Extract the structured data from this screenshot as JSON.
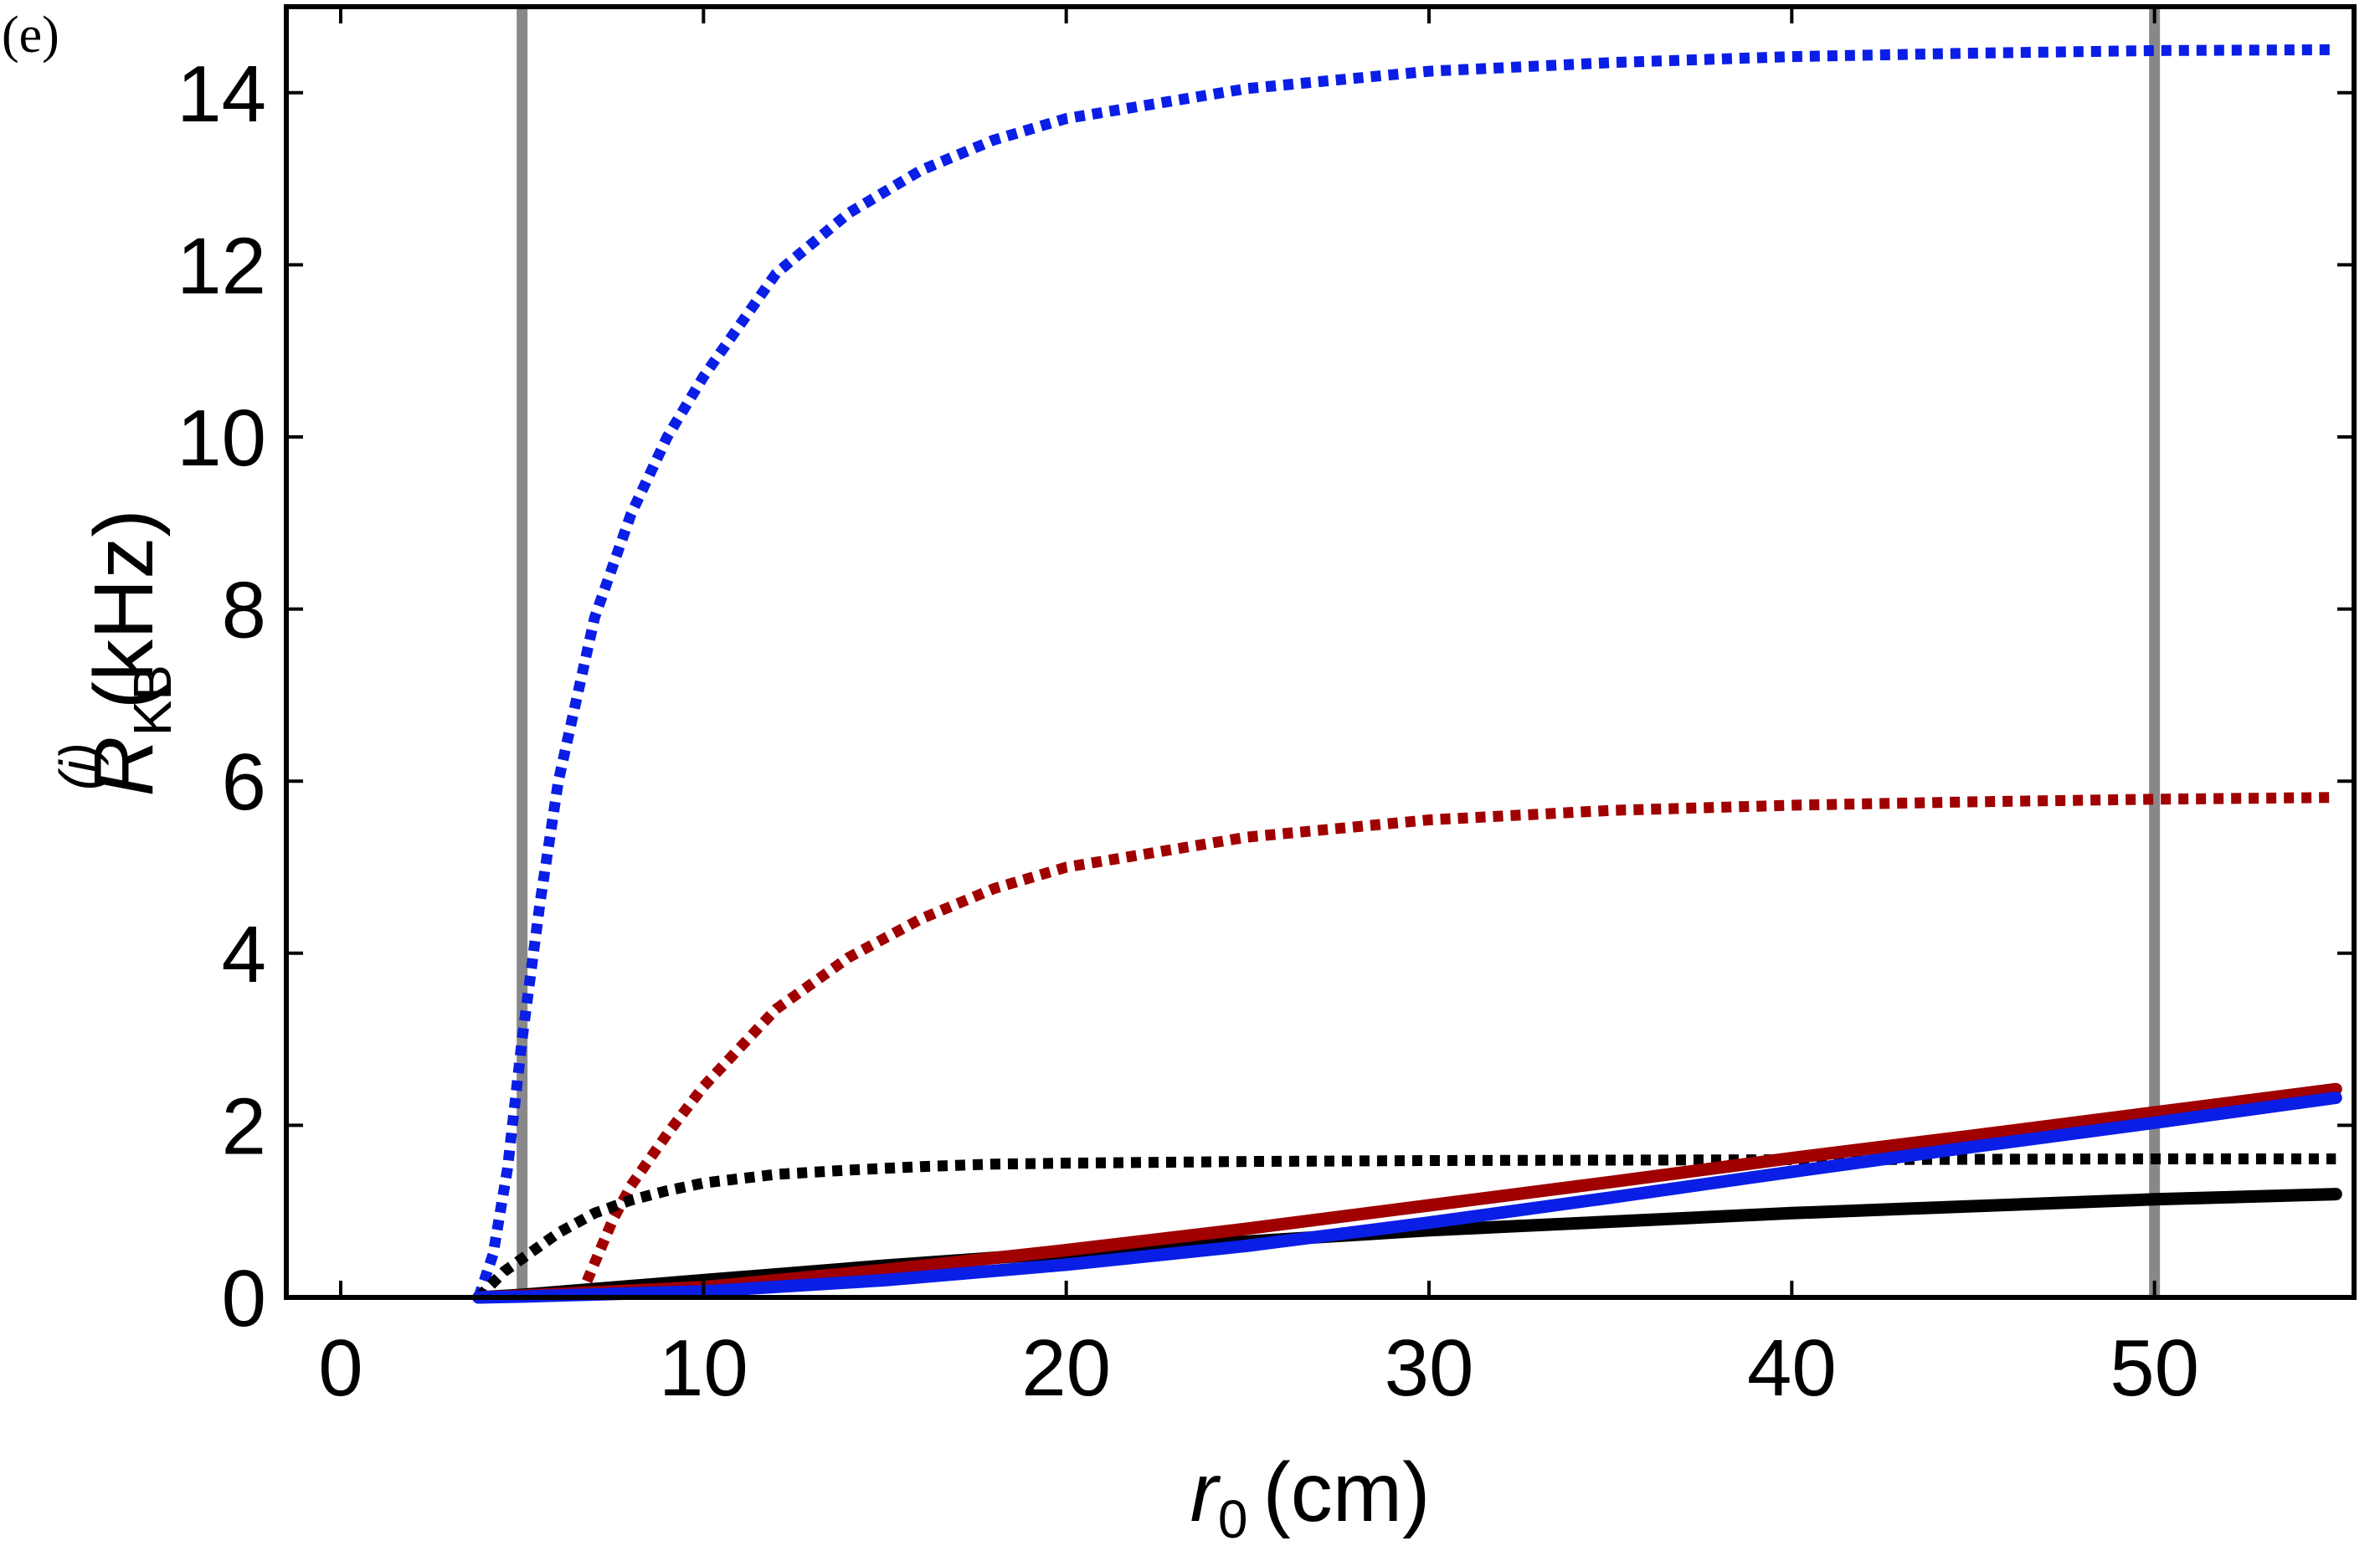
{
  "panel_label": "(e)",
  "chart_data": {
    "type": "line",
    "title": "",
    "xlabel": "r0 (cm)",
    "xlabel_parts": {
      "symbol": "r",
      "subscript": "0",
      "unit": "(cm)"
    },
    "ylabel": "R_KB^(i) (kHz)",
    "ylabel_parts": {
      "symbol": "R",
      "subscript": "KB",
      "superscript": "(i)",
      "unit": "(kHz)"
    },
    "xlim": [
      -1.5,
      55.5
    ],
    "ylim": [
      0,
      15
    ],
    "xticks": [
      0,
      10,
      20,
      30,
      40,
      50
    ],
    "xtick_labels": [
      "0",
      "10",
      "20",
      "30",
      "40",
      "50"
    ],
    "yticks": [
      0,
      2,
      4,
      6,
      8,
      10,
      12,
      14
    ],
    "ytick_labels": [
      "0",
      "2",
      "4",
      "6",
      "8",
      "10",
      "12",
      "14"
    ],
    "grid": false,
    "vertical_lines": [
      {
        "x": 5,
        "color": "#888888"
      },
      {
        "x": 50,
        "color": "#888888"
      }
    ],
    "series": [
      {
        "name": "blue-dotted",
        "color": "#0a1ee6",
        "style": "dotted",
        "x": [
          3.8,
          4.2,
          4.6,
          5,
          5.5,
          6,
          7,
          8,
          9,
          10,
          12,
          14,
          16,
          18,
          20,
          25,
          30,
          35,
          40,
          45,
          50,
          55
        ],
        "y": [
          0,
          0.5,
          1.5,
          3.0,
          4.6,
          6.0,
          7.9,
          9.1,
          10.0,
          10.7,
          11.9,
          12.6,
          13.1,
          13.45,
          13.7,
          14.05,
          14.25,
          14.35,
          14.42,
          14.46,
          14.49,
          14.5
        ]
      },
      {
        "name": "red-dotted",
        "color": "#a00000",
        "style": "dotted",
        "x": [
          6.6,
          7,
          7.5,
          8,
          9,
          10,
          12,
          14,
          16,
          18,
          20,
          25,
          30,
          35,
          40,
          45,
          50,
          55
        ],
        "y": [
          0,
          0.4,
          0.9,
          1.3,
          1.9,
          2.45,
          3.35,
          3.95,
          4.4,
          4.75,
          5.0,
          5.35,
          5.55,
          5.66,
          5.72,
          5.76,
          5.79,
          5.81
        ]
      },
      {
        "name": "black-dotted",
        "color": "#000000",
        "style": "dotted",
        "x": [
          3.8,
          4.5,
          5,
          6,
          7,
          8,
          9,
          10,
          12,
          14,
          16,
          18,
          20,
          25,
          30,
          40,
          50,
          55
        ],
        "y": [
          0,
          0.3,
          0.45,
          0.75,
          0.98,
          1.13,
          1.24,
          1.33,
          1.43,
          1.48,
          1.52,
          1.55,
          1.56,
          1.58,
          1.59,
          1.6,
          1.61,
          1.61
        ]
      },
      {
        "name": "black-solid",
        "color": "#000000",
        "style": "solid",
        "x": [
          3.8,
          5,
          10,
          15,
          20,
          25,
          30,
          35,
          40,
          45,
          50,
          55
        ],
        "y": [
          0,
          0.03,
          0.2,
          0.37,
          0.52,
          0.65,
          0.78,
          0.88,
          0.98,
          1.06,
          1.14,
          1.2
        ]
      },
      {
        "name": "red-solid",
        "color": "#a00000",
        "style": "solid",
        "x": [
          3.8,
          5,
          10,
          15,
          20,
          25,
          30,
          35,
          40,
          45,
          50,
          55
        ],
        "y": [
          0,
          0.02,
          0.12,
          0.32,
          0.55,
          0.8,
          1.07,
          1.34,
          1.62,
          1.88,
          2.15,
          2.42
        ]
      },
      {
        "name": "blue-solid",
        "color": "#0a1ee6",
        "style": "solid",
        "x": [
          3.8,
          5,
          10,
          15,
          20,
          25,
          30,
          35,
          40,
          45,
          50,
          55
        ],
        "y": [
          0,
          0.01,
          0.07,
          0.2,
          0.38,
          0.6,
          0.87,
          1.16,
          1.46,
          1.75,
          2.03,
          2.32
        ]
      }
    ]
  }
}
